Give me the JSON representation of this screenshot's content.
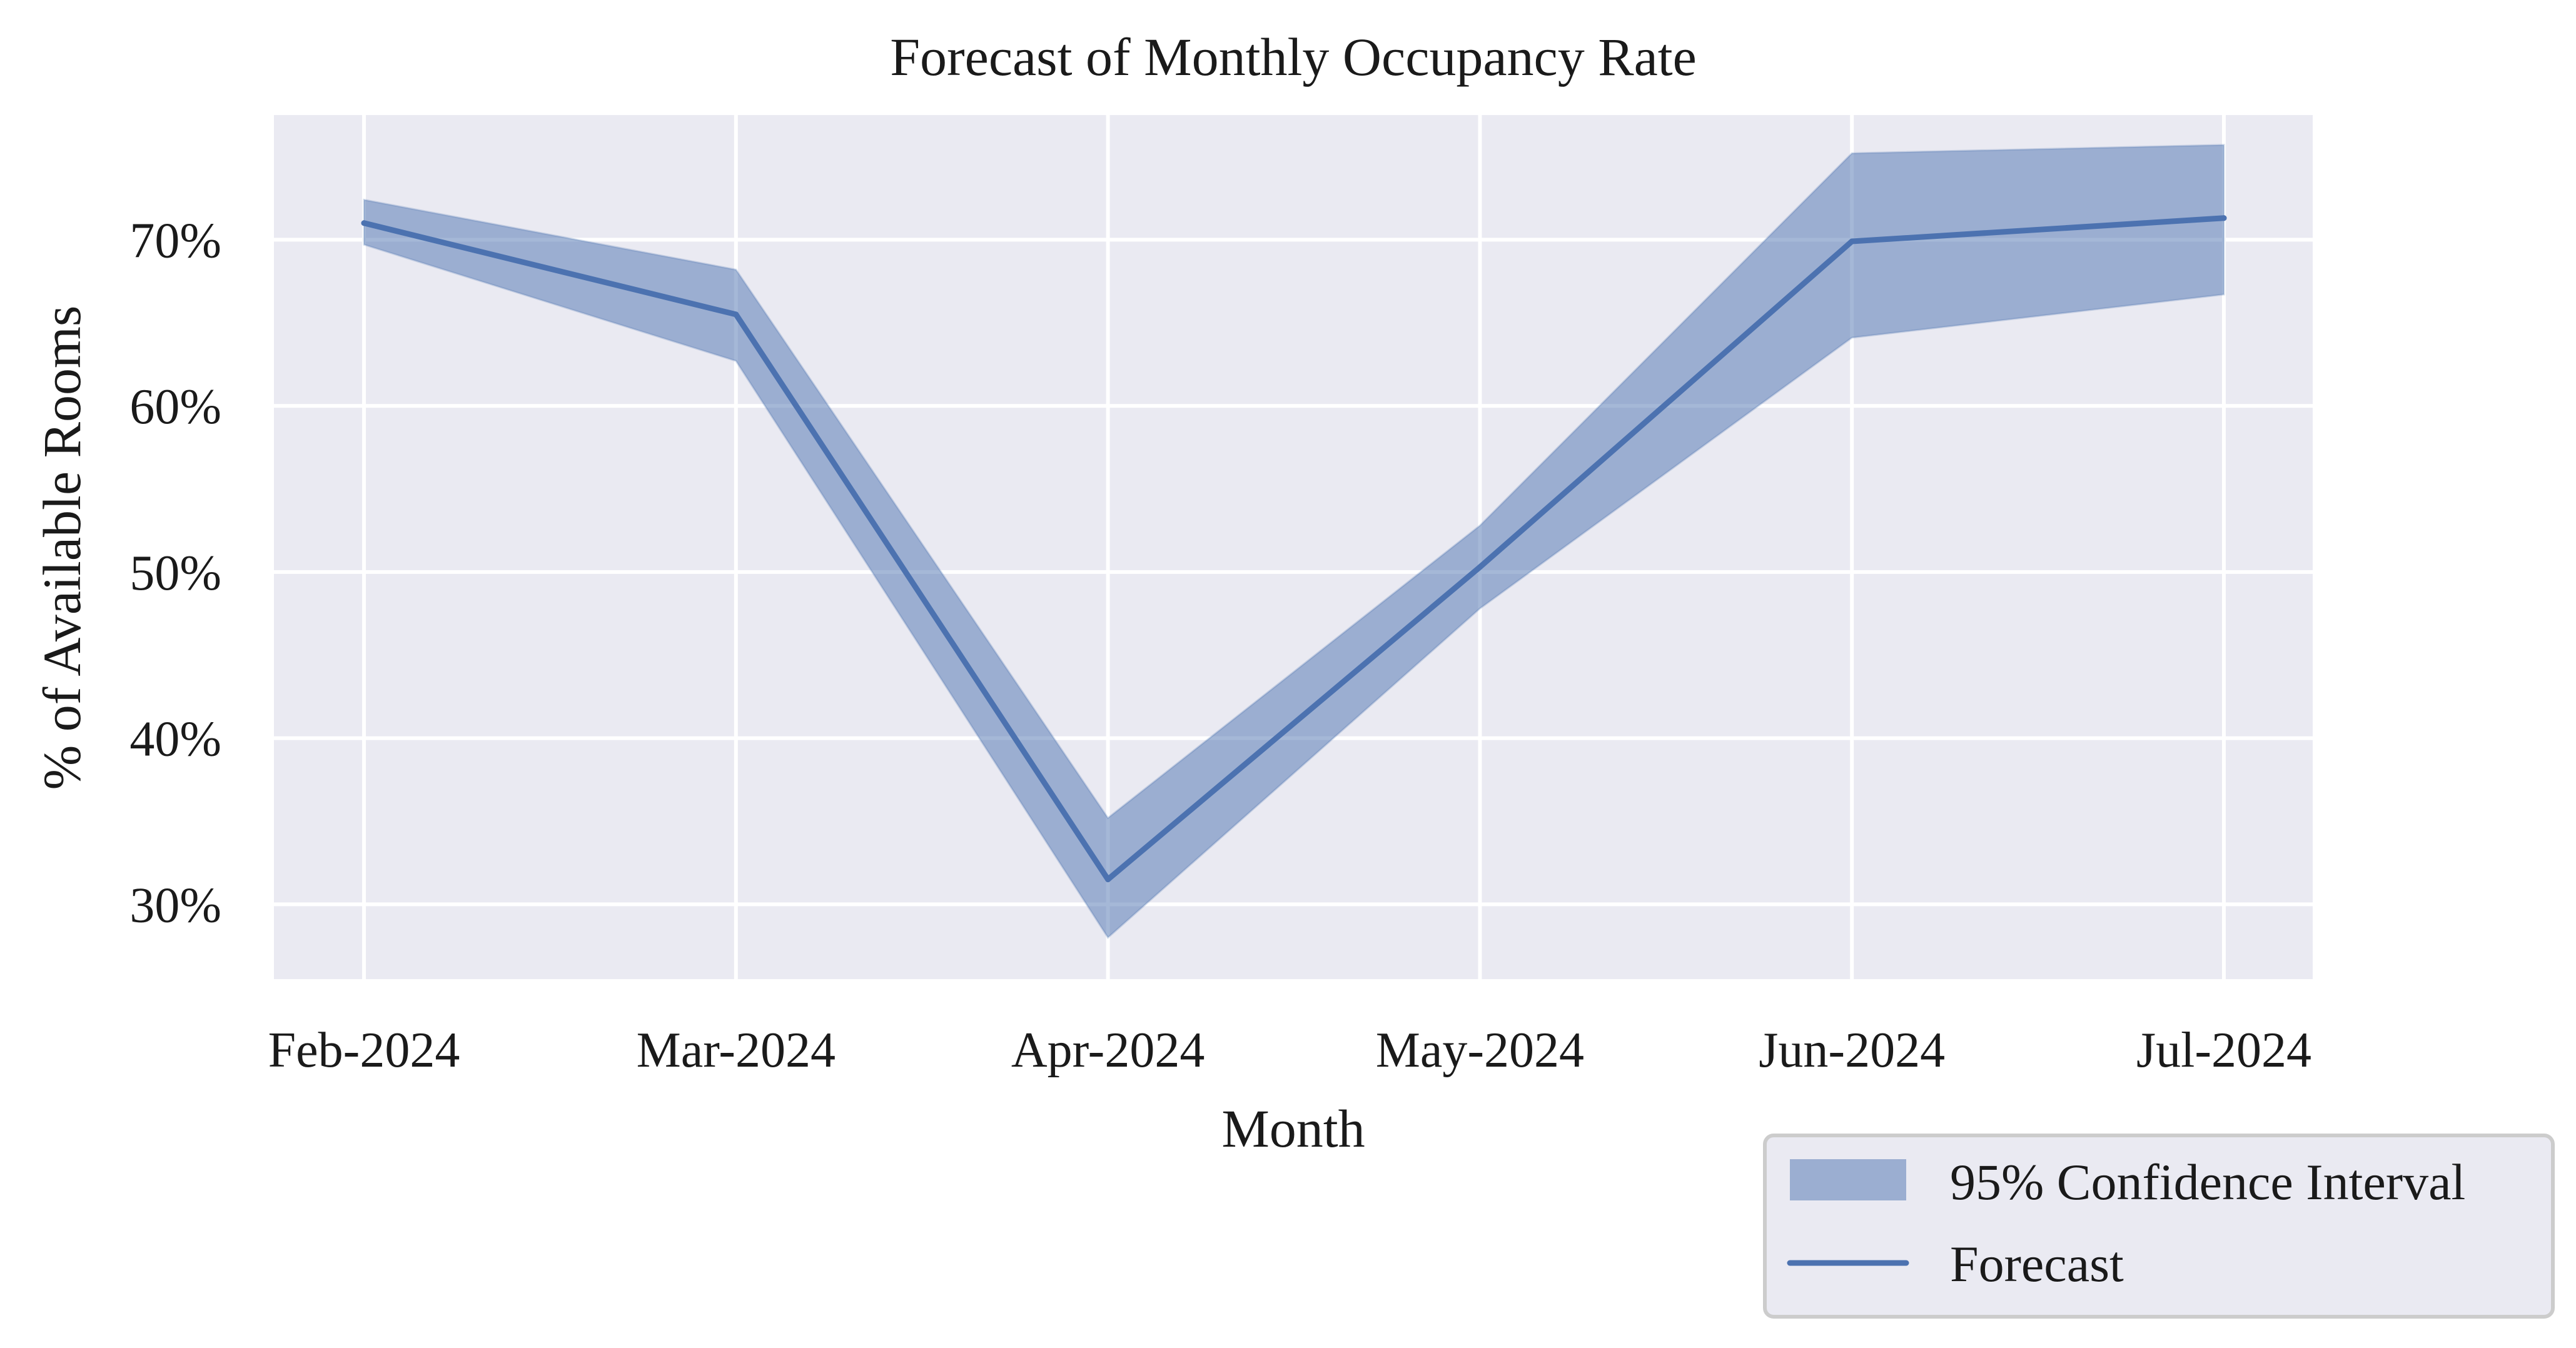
{
  "chart_data": {
    "type": "line",
    "title": "Forecast of Monthly Occupancy Rate",
    "xlabel": "Month",
    "ylabel": "% of Available Rooms",
    "categories": [
      "Feb-2024",
      "Mar-2024",
      "Apr-2024",
      "May-2024",
      "Jun-2024",
      "Jul-2024"
    ],
    "y_ticks": [
      30,
      40,
      50,
      60,
      70
    ],
    "y_tick_labels": [
      "30%",
      "40%",
      "50%",
      "60%",
      "70%"
    ],
    "ylim": [
      25.5,
      77.5
    ],
    "grid": true,
    "legend_position": "bottom-right, outside plot",
    "series": [
      {
        "name": "Forecast",
        "kind": "line",
        "color": "#4c72b0",
        "values": [
          71.0,
          65.5,
          31.5,
          50.3,
          69.9,
          71.3
        ]
      },
      {
        "name": "95% Confidence Interval",
        "kind": "band",
        "color": "#4c72b0",
        "lower": [
          69.7,
          62.7,
          28.0,
          47.8,
          64.1,
          66.7
        ],
        "upper": [
          72.4,
          68.2,
          35.2,
          52.8,
          75.2,
          75.7
        ]
      }
    ],
    "legend": [
      {
        "label": "95% Confidence Interval",
        "kind": "band"
      },
      {
        "label": "Forecast",
        "kind": "line"
      }
    ],
    "colors": {
      "plot_background": "#eaeaf2",
      "grid": "#ffffff",
      "series": "#4c72b0",
      "band_alpha": 0.5
    }
  }
}
